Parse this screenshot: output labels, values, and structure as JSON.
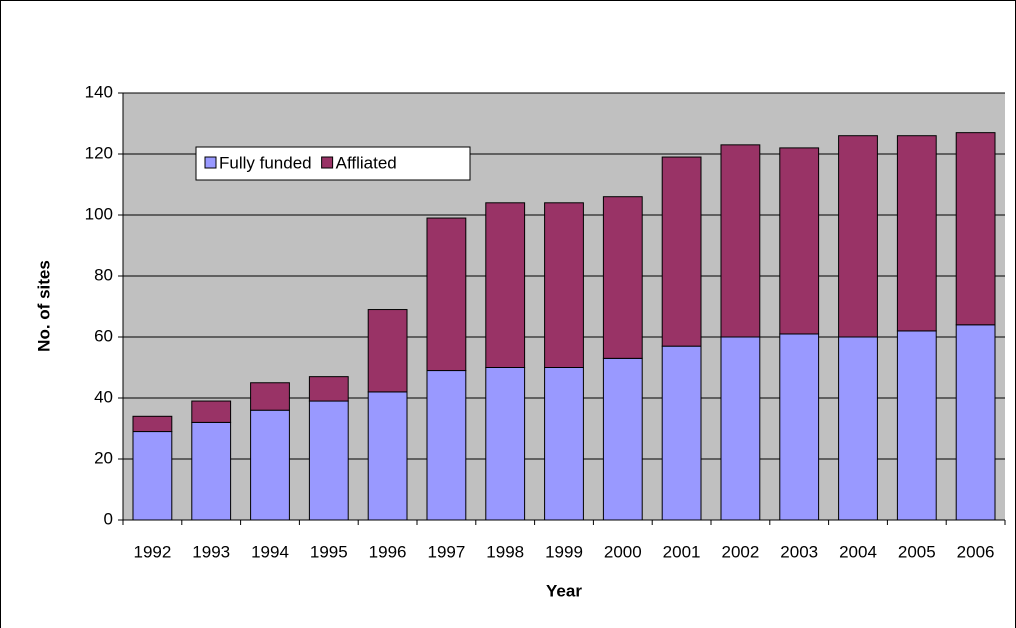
{
  "chart_data": {
    "type": "stacked-bar",
    "x_label": "Year",
    "y_label": "No. of sites",
    "categories": [
      "1992",
      "1993",
      "1994",
      "1995",
      "1996",
      "1997",
      "1998",
      "1999",
      "2000",
      "2001",
      "2002",
      "2003",
      "2004",
      "2005",
      "2006"
    ],
    "series": [
      {
        "name": "Fully funded",
        "color": "#9999ff",
        "values": [
          29,
          32,
          36,
          39,
          42,
          49,
          50,
          50,
          53,
          57,
          60,
          61,
          60,
          62,
          64
        ]
      },
      {
        "name": "Affliated",
        "color": "#993366",
        "values": [
          5,
          7,
          9,
          8,
          27,
          50,
          54,
          54,
          53,
          62,
          63,
          61,
          66,
          64,
          63
        ]
      }
    ],
    "ylim": [
      0,
      140
    ],
    "yticks": [
      0,
      20,
      40,
      60,
      80,
      100,
      120,
      140
    ],
    "grid": true
  }
}
